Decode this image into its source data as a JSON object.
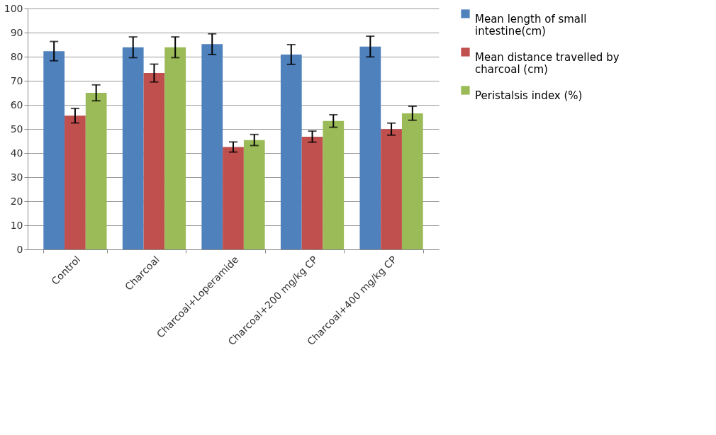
{
  "chart_data": {
    "type": "bar",
    "categories": [
      "Control",
      "Charcoal",
      "Charcoal+Loperamide",
      "Charcoal+200 mg/kg CP",
      "Charcoal+400 mg/kg CP"
    ],
    "series": [
      {
        "name": "Mean length of small intestine(cm)",
        "color": "#4f81bd",
        "values": [
          82.3,
          83.9,
          85.2,
          80.9,
          84.2
        ],
        "errors": [
          4.0,
          4.3,
          4.3,
          4.1,
          4.3
        ]
      },
      {
        "name": "Mean distance travelled by charcoal (cm)",
        "color": "#c0504d",
        "values": [
          55.5,
          73.2,
          42.5,
          46.8,
          49.9
        ],
        "errors": [
          3.0,
          3.7,
          2.1,
          2.3,
          2.5
        ]
      },
      {
        "name": "Peristalsis index (%)",
        "color": "#9bbb59",
        "values": [
          65.0,
          83.9,
          45.4,
          53.3,
          56.5
        ],
        "errors": [
          3.3,
          4.3,
          2.3,
          2.6,
          2.9
        ]
      }
    ],
    "ylim": [
      0,
      100
    ],
    "yticks": [
      0,
      10,
      20,
      30,
      40,
      50,
      60,
      70,
      80,
      90,
      100
    ],
    "grid": "y",
    "legend": "right"
  }
}
